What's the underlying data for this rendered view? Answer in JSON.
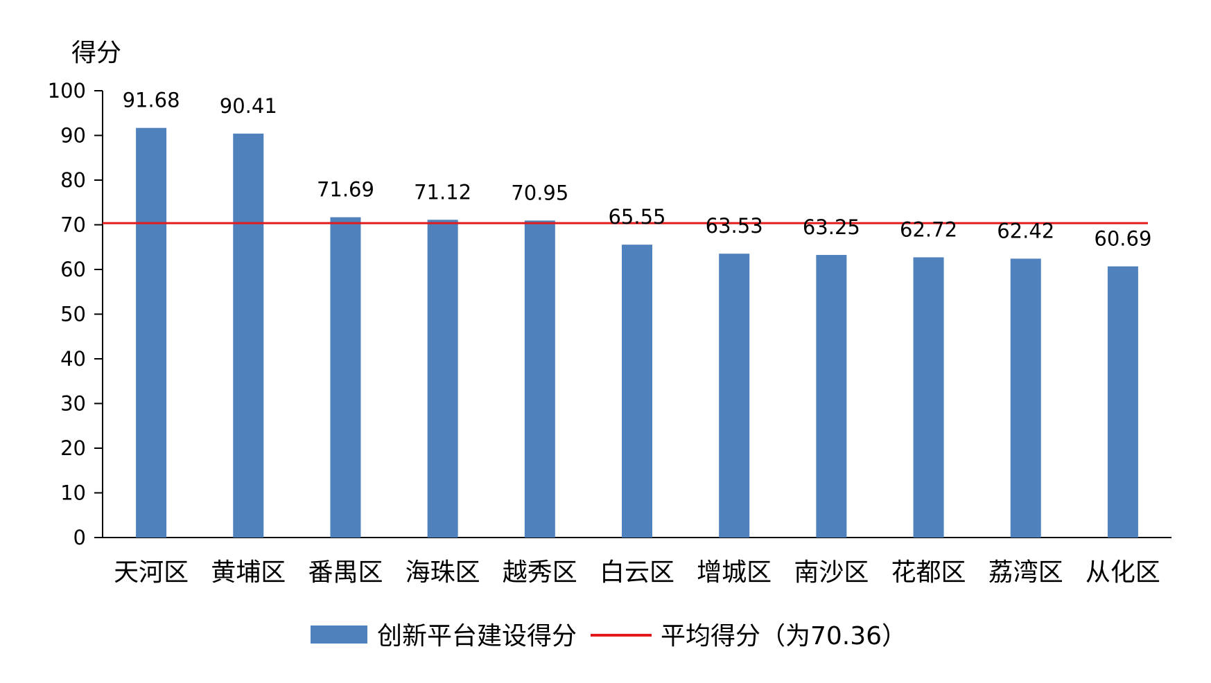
{
  "chart_data": {
    "type": "bar",
    "categories": [
      "天河区",
      "黄埔区",
      "番禺区",
      "海珠区",
      "越秀区",
      "白云区",
      "增城区",
      "南沙区",
      "花都区",
      "荔湾区",
      "从化区"
    ],
    "series": [
      {
        "name": "创新平台建设得分",
        "values": [
          91.68,
          90.41,
          71.69,
          71.12,
          70.95,
          65.55,
          63.53,
          63.25,
          62.72,
          62.42,
          60.69
        ],
        "data_labels": [
          "91.68",
          "90.41",
          "71.69",
          "71.12",
          "70.95",
          "65.55",
          "63.53",
          "63.25",
          "62.72",
          "62.42",
          "60.69"
        ],
        "color": "#4F81BD"
      }
    ],
    "reference_line": {
      "name": "平均得分（为70.36）",
      "value": 70.36,
      "color": "#E31A1C"
    },
    "ylabel": "得分",
    "xlabel": "",
    "title": "",
    "ylim": [
      0,
      100
    ],
    "yticks": [
      "0",
      "10",
      "20",
      "30",
      "40",
      "50",
      "60",
      "70",
      "80",
      "90",
      "100"
    ],
    "grid": false,
    "legend_position": "bottom"
  }
}
